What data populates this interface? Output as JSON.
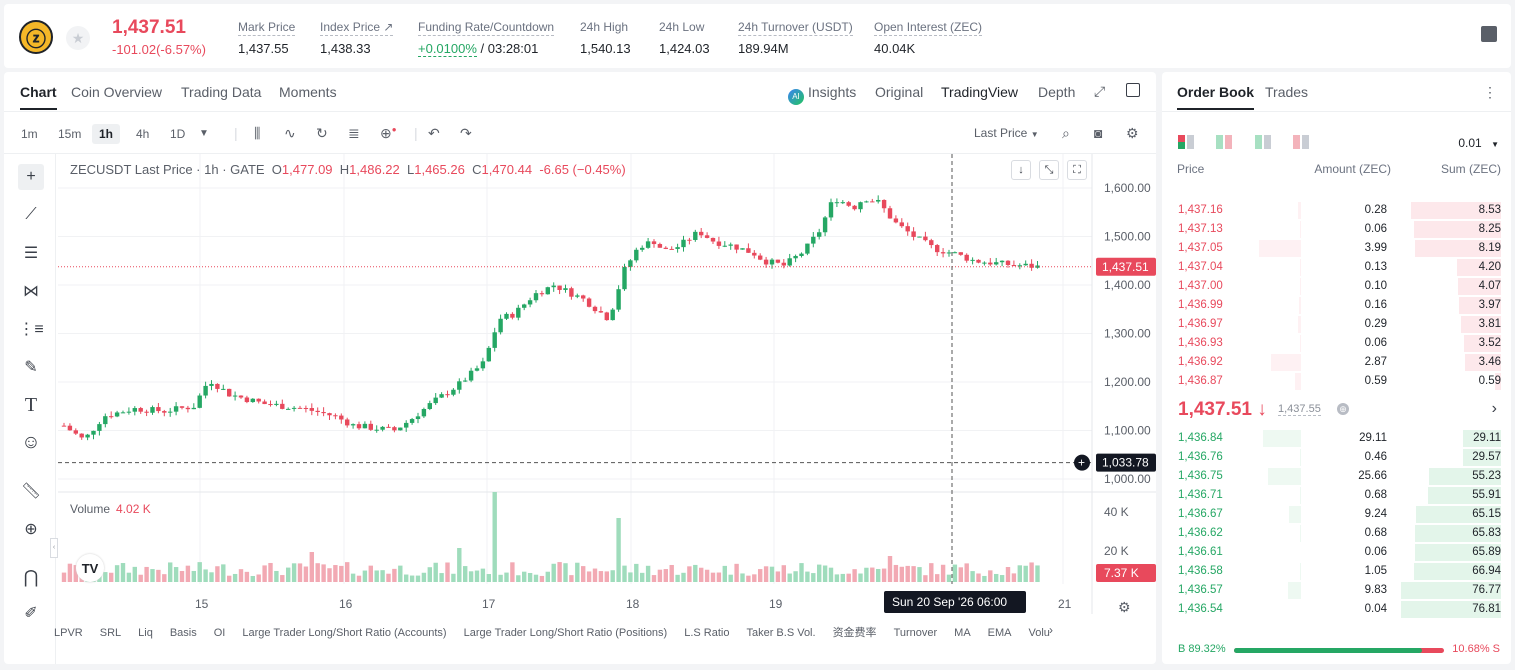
{
  "ticker": {
    "last_price": "1,437.51",
    "change": "-101.02(-6.57%)",
    "stats": [
      {
        "label": "Mark Price",
        "value": "1,437.55"
      },
      {
        "label": "Index Price ↗",
        "value": "1,438.33"
      },
      {
        "label": "Funding Rate/Countdown",
        "value_green": "+0.0100%",
        "value": " / 03:28:01"
      },
      {
        "label": "24h High",
        "value": "1,540.13"
      },
      {
        "label": "24h Low",
        "value": "1,424.03"
      },
      {
        "label": "24h Turnover (USDT)",
        "value": "189.94M"
      },
      {
        "label": "Open Interest (ZEC)",
        "value": "40.04K"
      }
    ]
  },
  "chart_tabs": [
    "Chart",
    "Coin Overview",
    "Trading Data",
    "Moments"
  ],
  "chart_view_tabs": [
    "Insights",
    "Original",
    "TradingView",
    "Depth"
  ],
  "ai_badge": "AI",
  "timeframes": [
    "1m",
    "15m",
    "1h",
    "4h",
    "1D"
  ],
  "price_type": "Last Price",
  "legend": {
    "symbol": "ZECUSDT Last Price · 1h · GATE",
    "o_label": "O",
    "o": "1,477.09",
    "h_label": "H",
    "h": "1,486.22",
    "l_label": "L",
    "l": "1,465.26",
    "c_label": "C",
    "c": "1,470.44",
    "chg": "-6.65 (−0.45%)"
  },
  "volume_legend": {
    "label": "Volume",
    "value": "4.02 K"
  },
  "price_axis": [
    "1,600.00",
    "1,500.00",
    "1,400.00",
    "1,300.00",
    "1,200.00",
    "1,100.00",
    "1,000.00"
  ],
  "price_tag": "1,437.51",
  "crosshair_tag": "1,033.78",
  "volume_axis": [
    "40 K",
    "20 K"
  ],
  "volume_tag": "7.37 K",
  "x_labels": [
    "15",
    "16",
    "17",
    "18",
    "19",
    "21"
  ],
  "crosshair_time": "Sun 20 Sep '26   06:00",
  "bottom_indicators": [
    "LPVR",
    "SRL",
    "Liq",
    "Basis",
    "OI",
    "Large Trader Long/Short Ratio (Accounts)",
    "Large Trader Long/Short Ratio (Positions)",
    "L.S Ratio",
    "Taker B.S Vol.",
    "资金费率",
    "Turnover",
    "MA",
    "EMA",
    "Volu"
  ],
  "order_book": {
    "tabs": [
      "Order Book",
      "Trades"
    ],
    "precision": "0.01",
    "headers": [
      "Price",
      "Amount (ZEC)",
      "Sum (ZEC)"
    ],
    "asks": [
      {
        "price": "1,437.16",
        "amount": "0.28",
        "sum": "8.53"
      },
      {
        "price": "1,437.13",
        "amount": "0.06",
        "sum": "8.25"
      },
      {
        "price": "1,437.05",
        "amount": "3.99",
        "sum": "8.19"
      },
      {
        "price": "1,437.04",
        "amount": "0.13",
        "sum": "4.20"
      },
      {
        "price": "1,437.00",
        "amount": "0.10",
        "sum": "4.07"
      },
      {
        "price": "1,436.99",
        "amount": "0.16",
        "sum": "3.97"
      },
      {
        "price": "1,436.97",
        "amount": "0.29",
        "sum": "3.81"
      },
      {
        "price": "1,436.93",
        "amount": "0.06",
        "sum": "3.52"
      },
      {
        "price": "1,436.92",
        "amount": "2.87",
        "sum": "3.46"
      },
      {
        "price": "1,436.87",
        "amount": "0.59",
        "sum": "0.59"
      }
    ],
    "mid_price": "1,437.51 ↓",
    "mid_mark": "1,437.55",
    "bids": [
      {
        "price": "1,436.84",
        "amount": "29.11",
        "sum": "29.11"
      },
      {
        "price": "1,436.76",
        "amount": "0.46",
        "sum": "29.57"
      },
      {
        "price": "1,436.75",
        "amount": "25.66",
        "sum": "55.23"
      },
      {
        "price": "1,436.71",
        "amount": "0.68",
        "sum": "55.91"
      },
      {
        "price": "1,436.67",
        "amount": "9.24",
        "sum": "65.15"
      },
      {
        "price": "1,436.62",
        "amount": "0.68",
        "sum": "65.83"
      },
      {
        "price": "1,436.61",
        "amount": "0.06",
        "sum": "65.89"
      },
      {
        "price": "1,436.58",
        "amount": "1.05",
        "sum": "66.94"
      },
      {
        "price": "1,436.57",
        "amount": "9.83",
        "sum": "76.77"
      },
      {
        "price": "1,436.54",
        "amount": "0.04",
        "sum": "76.81"
      }
    ],
    "buy_ratio": "B 89.32%",
    "sell_ratio": "10.68% S",
    "buy_ratio_value": 89.32
  },
  "colors": {
    "up": "#25a764",
    "down": "#e8495c"
  }
}
